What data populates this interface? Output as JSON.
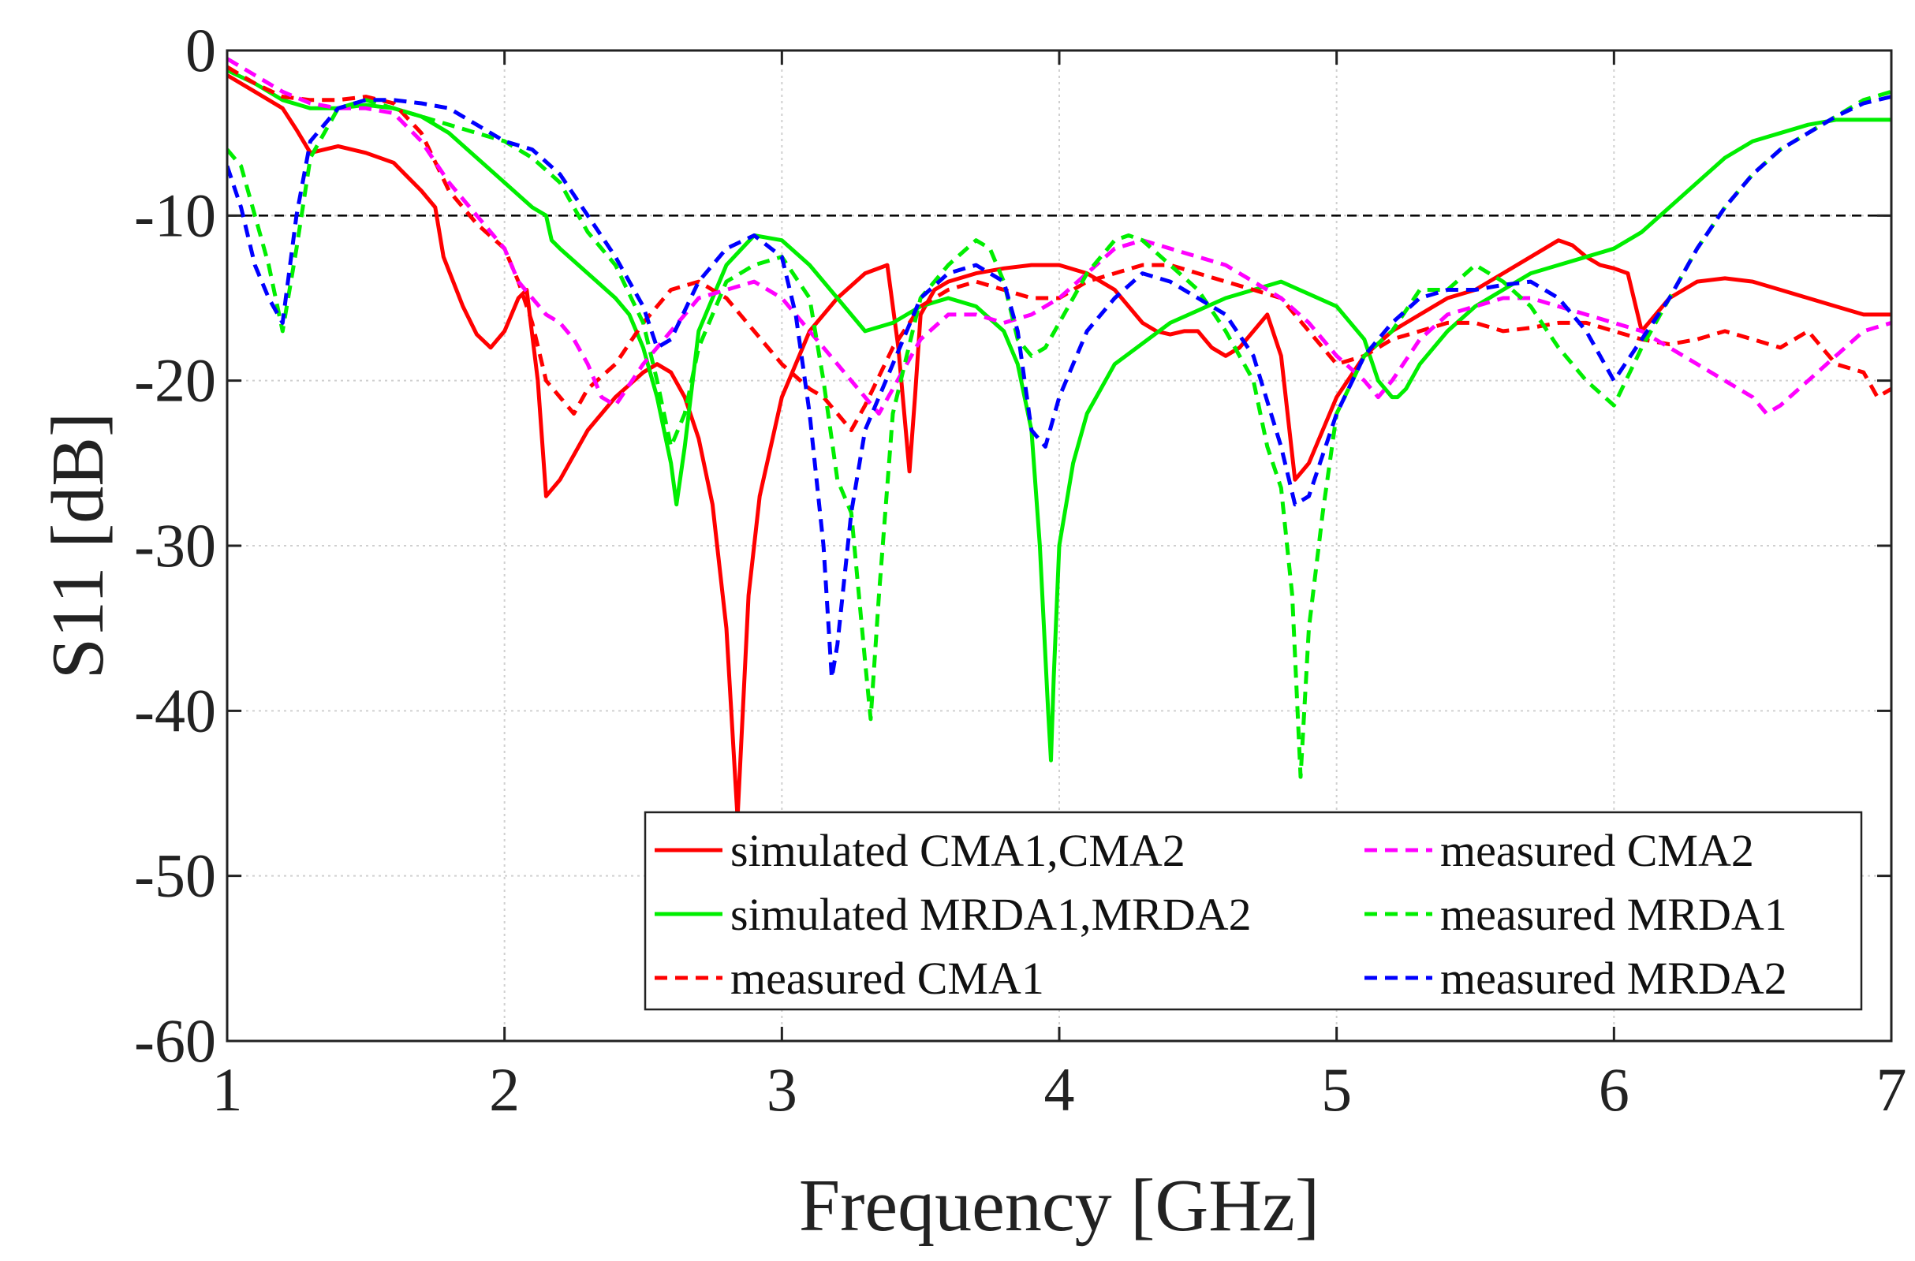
{
  "chart_data": {
    "type": "line",
    "title": "",
    "xlabel": "Frequency [GHz]",
    "ylabel": "S11 [dB]",
    "xlim": [
      1,
      7
    ],
    "ylim": [
      -60,
      0
    ],
    "xticks": [
      "1",
      "2",
      "3",
      "4",
      "5",
      "6",
      "7"
    ],
    "yticks": [
      "0",
      "-10",
      "-20",
      "-30",
      "-40",
      "-50",
      "-60"
    ],
    "grid": true,
    "threshold": -10,
    "legend_position": "bottom-right",
    "series": [
      {
        "name": "simulated CMA1,CMA2",
        "color": "#ff0000",
        "style": "solid",
        "x": [
          1.0,
          1.1,
          1.2,
          1.25,
          1.3,
          1.4,
          1.5,
          1.6,
          1.7,
          1.75,
          1.78,
          1.85,
          1.9,
          1.95,
          2.0,
          2.05,
          2.08,
          2.12,
          2.15,
          2.2,
          2.3,
          2.4,
          2.5,
          2.55,
          2.6,
          2.65,
          2.7,
          2.75,
          2.8,
          2.84,
          2.88,
          2.92,
          3.0,
          3.1,
          3.2,
          3.3,
          3.38,
          3.42,
          3.46,
          3.48,
          3.5,
          3.55,
          3.6,
          3.7,
          3.8,
          3.9,
          4.0,
          4.1,
          4.2,
          4.3,
          4.35,
          4.4,
          4.45,
          4.5,
          4.55,
          4.6,
          4.65,
          4.7,
          4.75,
          4.8,
          4.85,
          4.9,
          5.0,
          5.1,
          5.2,
          5.3,
          5.4,
          5.5,
          5.6,
          5.7,
          5.8,
          5.85,
          5.9,
          5.95,
          6.0,
          6.05,
          6.1,
          6.2,
          6.3,
          6.4,
          6.5,
          6.6,
          6.7,
          6.8,
          6.9,
          7.0
        ],
        "y": [
          -1.5,
          -2.5,
          -3.5,
          -4.8,
          -6.2,
          -5.8,
          -6.2,
          -6.8,
          -8.5,
          -9.5,
          -12.5,
          -15.5,
          -17.2,
          -18.0,
          -17.0,
          -15.0,
          -14.5,
          -20.0,
          -27.0,
          -26.0,
          -23.0,
          -21.0,
          -19.5,
          -19.0,
          -19.5,
          -21.0,
          -23.5,
          -27.5,
          -35.0,
          -46.5,
          -33.0,
          -27.0,
          -21.0,
          -17.0,
          -15.0,
          -13.5,
          -13.0,
          -18.0,
          -25.5,
          -21.0,
          -16.0,
          -14.5,
          -14.0,
          -13.5,
          -13.2,
          -13.0,
          -13.0,
          -13.5,
          -14.5,
          -16.5,
          -17.0,
          -17.2,
          -17.0,
          -17.0,
          -18.0,
          -18.5,
          -18.0,
          -17.0,
          -16.0,
          -18.5,
          -26.0,
          -25.0,
          -21.0,
          -18.5,
          -17.0,
          -16.0,
          -15.0,
          -14.5,
          -13.5,
          -12.5,
          -11.5,
          -11.8,
          -12.5,
          -13.0,
          -13.2,
          -13.5,
          -17.0,
          -15.0,
          -14.0,
          -13.8,
          -14.0,
          -14.5,
          -15.0,
          -15.5,
          -16.0,
          -16.0
        ]
      },
      {
        "name": "simulated MRDA1,MRDA2",
        "color": "#00ee00",
        "style": "solid",
        "x": [
          1.0,
          1.1,
          1.2,
          1.3,
          1.4,
          1.5,
          1.6,
          1.7,
          1.8,
          1.9,
          2.0,
          2.1,
          2.15,
          2.17,
          2.2,
          2.3,
          2.4,
          2.45,
          2.5,
          2.55,
          2.6,
          2.62,
          2.65,
          2.7,
          2.8,
          2.9,
          3.0,
          3.1,
          3.2,
          3.3,
          3.4,
          3.5,
          3.6,
          3.7,
          3.8,
          3.85,
          3.9,
          3.93,
          3.96,
          3.97,
          3.98,
          4.0,
          4.05,
          4.1,
          4.2,
          4.4,
          4.6,
          4.8,
          5.0,
          5.1,
          5.15,
          5.2,
          5.22,
          5.25,
          5.3,
          5.4,
          5.5,
          5.6,
          5.7,
          5.8,
          5.9,
          6.0,
          6.1,
          6.2,
          6.3,
          6.4,
          6.5,
          6.6,
          6.7,
          6.8,
          6.9,
          7.0
        ],
        "y": [
          -1.2,
          -2.0,
          -3.0,
          -3.5,
          -3.5,
          -3.3,
          -3.5,
          -4.0,
          -5.0,
          -6.5,
          -8.0,
          -9.5,
          -10.0,
          -11.5,
          -12.0,
          -13.5,
          -15.0,
          -16.0,
          -18.0,
          -21.0,
          -25.0,
          -27.5,
          -24.0,
          -17.0,
          -13.0,
          -11.2,
          -11.5,
          -13.0,
          -15.0,
          -17.0,
          -16.5,
          -15.5,
          -15.0,
          -15.5,
          -17.0,
          -19.0,
          -23.0,
          -30.0,
          -40.0,
          -43.0,
          -38.0,
          -30.0,
          -25.0,
          -22.0,
          -19.0,
          -16.5,
          -15.0,
          -14.0,
          -15.5,
          -17.5,
          -20.0,
          -21.0,
          -21.0,
          -20.5,
          -19.0,
          -17.0,
          -15.5,
          -14.5,
          -13.5,
          -13.0,
          -12.5,
          -12.0,
          -11.0,
          -9.5,
          -8.0,
          -6.5,
          -5.5,
          -5.0,
          -4.5,
          -4.2,
          -4.2,
          -4.2
        ]
      },
      {
        "name": "measured CMA1",
        "color": "#ff0000",
        "style": "dashed",
        "x": [
          1.0,
          1.1,
          1.2,
          1.3,
          1.4,
          1.5,
          1.6,
          1.7,
          1.8,
          1.9,
          2.0,
          2.05,
          2.1,
          2.15,
          2.2,
          2.25,
          2.3,
          2.4,
          2.5,
          2.6,
          2.7,
          2.8,
          2.9,
          3.0,
          3.1,
          3.15,
          3.2,
          3.25,
          3.3,
          3.4,
          3.5,
          3.6,
          3.7,
          3.8,
          3.9,
          4.0,
          4.1,
          4.2,
          4.3,
          4.4,
          4.5,
          4.6,
          4.7,
          4.8,
          4.9,
          5.0,
          5.1,
          5.2,
          5.3,
          5.4,
          5.5,
          5.6,
          5.7,
          5.8,
          5.9,
          6.0,
          6.1,
          6.2,
          6.3,
          6.4,
          6.5,
          6.6,
          6.7,
          6.8,
          6.9,
          6.95,
          7.0
        ],
        "y": [
          -1.0,
          -2.0,
          -2.8,
          -3.0,
          -3.0,
          -2.8,
          -3.2,
          -5.0,
          -8.5,
          -10.5,
          -12.0,
          -14.0,
          -16.5,
          -20.0,
          -21.0,
          -22.0,
          -20.5,
          -19.0,
          -16.5,
          -14.5,
          -14.0,
          -15.0,
          -17.0,
          -19.0,
          -20.5,
          -21.0,
          -22.0,
          -23.0,
          -21.5,
          -18.0,
          -15.5,
          -14.5,
          -14.0,
          -14.5,
          -15.0,
          -15.0,
          -14.0,
          -13.5,
          -13.0,
          -13.0,
          -13.5,
          -14.0,
          -14.5,
          -15.0,
          -17.0,
          -19.0,
          -18.5,
          -17.5,
          -17.0,
          -16.5,
          -16.5,
          -17.0,
          -16.8,
          -16.5,
          -16.5,
          -17.0,
          -17.5,
          -17.8,
          -17.5,
          -17.0,
          -17.5,
          -18.0,
          -17.0,
          -19.0,
          -19.5,
          -21.0,
          -20.5
        ]
      },
      {
        "name": "measured CMA2",
        "color": "#ff00ff",
        "style": "dashed",
        "x": [
          1.0,
          1.1,
          1.2,
          1.3,
          1.4,
          1.5,
          1.6,
          1.7,
          1.8,
          1.9,
          2.0,
          2.05,
          2.1,
          2.15,
          2.2,
          2.25,
          2.3,
          2.35,
          2.4,
          2.5,
          2.6,
          2.7,
          2.8,
          2.9,
          3.0,
          3.1,
          3.2,
          3.3,
          3.35,
          3.4,
          3.5,
          3.6,
          3.7,
          3.8,
          3.9,
          4.0,
          4.1,
          4.2,
          4.3,
          4.4,
          4.5,
          4.6,
          4.7,
          4.8,
          4.9,
          5.0,
          5.1,
          5.15,
          5.2,
          5.3,
          5.4,
          5.5,
          5.6,
          5.7,
          5.8,
          5.9,
          6.0,
          6.1,
          6.2,
          6.3,
          6.4,
          6.5,
          6.55,
          6.6,
          6.7,
          6.8,
          6.9,
          7.0
        ],
        "y": [
          -0.5,
          -1.5,
          -2.5,
          -3.2,
          -3.5,
          -3.5,
          -3.8,
          -5.5,
          -8.0,
          -10.0,
          -12.0,
          -14.0,
          -15.0,
          -16.0,
          -16.5,
          -17.5,
          -19.0,
          -21.0,
          -21.5,
          -19.0,
          -17.0,
          -15.0,
          -14.5,
          -14.0,
          -15.0,
          -17.0,
          -19.0,
          -21.0,
          -22.0,
          -20.5,
          -17.5,
          -16.0,
          -16.0,
          -16.5,
          -16.0,
          -15.0,
          -13.5,
          -12.0,
          -11.5,
          -12.0,
          -12.5,
          -13.0,
          -14.0,
          -15.0,
          -16.5,
          -18.5,
          -20.0,
          -21.0,
          -20.0,
          -17.5,
          -16.0,
          -15.5,
          -15.0,
          -15.0,
          -15.5,
          -16.0,
          -16.5,
          -17.0,
          -18.0,
          -19.0,
          -20.0,
          -21.0,
          -22.0,
          -21.5,
          -20.0,
          -18.5,
          -17.0,
          -16.5
        ]
      },
      {
        "name": "measured MRDA1",
        "color": "#00ee00",
        "style": "dashed",
        "x": [
          1.0,
          1.05,
          1.1,
          1.15,
          1.2,
          1.25,
          1.3,
          1.4,
          1.5,
          1.6,
          1.7,
          1.8,
          1.9,
          2.0,
          2.1,
          2.2,
          2.3,
          2.4,
          2.5,
          2.55,
          2.6,
          2.65,
          2.7,
          2.8,
          2.9,
          3.0,
          3.1,
          3.15,
          3.2,
          3.25,
          3.3,
          3.32,
          3.35,
          3.4,
          3.5,
          3.6,
          3.7,
          3.75,
          3.8,
          3.85,
          3.9,
          3.95,
          4.0,
          4.1,
          4.2,
          4.25,
          4.3,
          4.4,
          4.5,
          4.6,
          4.7,
          4.75,
          4.8,
          4.84,
          4.87,
          4.9,
          4.95,
          5.0,
          5.1,
          5.2,
          5.3,
          5.4,
          5.5,
          5.6,
          5.7,
          5.8,
          5.9,
          6.0,
          6.1,
          6.2,
          6.3,
          6.4,
          6.5,
          6.6,
          6.7,
          6.8,
          6.9,
          7.0
        ],
        "y": [
          -6.0,
          -7.0,
          -10.0,
          -13.0,
          -17.0,
          -12.0,
          -6.5,
          -3.5,
          -3.0,
          -3.5,
          -4.0,
          -4.5,
          -5.0,
          -5.5,
          -6.5,
          -8.0,
          -11.0,
          -13.0,
          -16.5,
          -20.0,
          -24.0,
          -22.0,
          -18.0,
          -14.0,
          -13.0,
          -12.5,
          -15.0,
          -20.0,
          -26.0,
          -28.0,
          -37.0,
          -40.5,
          -33.0,
          -22.0,
          -15.0,
          -13.0,
          -11.5,
          -12.0,
          -14.0,
          -17.5,
          -18.5,
          -18.0,
          -16.5,
          -13.5,
          -11.5,
          -11.2,
          -11.5,
          -13.0,
          -14.5,
          -17.0,
          -20.0,
          -24.0,
          -26.5,
          -33.0,
          -44.0,
          -35.0,
          -28.0,
          -22.0,
          -18.5,
          -17.0,
          -14.5,
          -14.5,
          -13.0,
          -14.0,
          -15.5,
          -18.0,
          -20.0,
          -21.5,
          -18.0,
          -15.0,
          -12.0,
          -9.5,
          -7.5,
          -6.0,
          -5.0,
          -4.0,
          -3.0,
          -2.5
        ]
      },
      {
        "name": "measured MRDA2",
        "color": "#0000ff",
        "style": "dashed",
        "x": [
          1.0,
          1.05,
          1.1,
          1.15,
          1.2,
          1.25,
          1.3,
          1.4,
          1.5,
          1.6,
          1.7,
          1.8,
          1.9,
          2.0,
          2.1,
          2.2,
          2.3,
          2.4,
          2.5,
          2.55,
          2.6,
          2.7,
          2.8,
          2.9,
          3.0,
          3.05,
          3.1,
          3.15,
          3.18,
          3.2,
          3.25,
          3.3,
          3.4,
          3.5,
          3.6,
          3.7,
          3.8,
          3.85,
          3.9,
          3.95,
          4.0,
          4.1,
          4.2,
          4.3,
          4.4,
          4.5,
          4.6,
          4.7,
          4.8,
          4.85,
          4.9,
          5.0,
          5.1,
          5.2,
          5.3,
          5.4,
          5.5,
          5.6,
          5.7,
          5.8,
          5.9,
          6.0,
          6.1,
          6.2,
          6.3,
          6.4,
          6.5,
          6.6,
          6.7,
          6.8,
          6.9,
          7.0
        ],
        "y": [
          -7.0,
          -9.5,
          -13.0,
          -15.0,
          -16.5,
          -10.0,
          -5.5,
          -3.5,
          -3.0,
          -3.0,
          -3.2,
          -3.5,
          -4.5,
          -5.5,
          -6.0,
          -7.5,
          -10.0,
          -12.5,
          -15.5,
          -18.0,
          -17.5,
          -14.0,
          -12.0,
          -11.2,
          -12.5,
          -16.0,
          -22.0,
          -30.0,
          -38.0,
          -36.0,
          -28.0,
          -23.0,
          -19.0,
          -15.0,
          -13.5,
          -13.0,
          -14.0,
          -17.0,
          -23.0,
          -24.0,
          -21.0,
          -17.0,
          -15.0,
          -13.5,
          -14.0,
          -15.0,
          -16.0,
          -18.5,
          -24.0,
          -27.5,
          -27.0,
          -22.0,
          -18.5,
          -16.5,
          -15.0,
          -14.5,
          -14.5,
          -14.2,
          -14.0,
          -15.0,
          -17.0,
          -20.0,
          -17.5,
          -15.0,
          -12.0,
          -9.5,
          -7.5,
          -6.0,
          -5.0,
          -4.0,
          -3.2,
          -2.8
        ]
      }
    ]
  }
}
